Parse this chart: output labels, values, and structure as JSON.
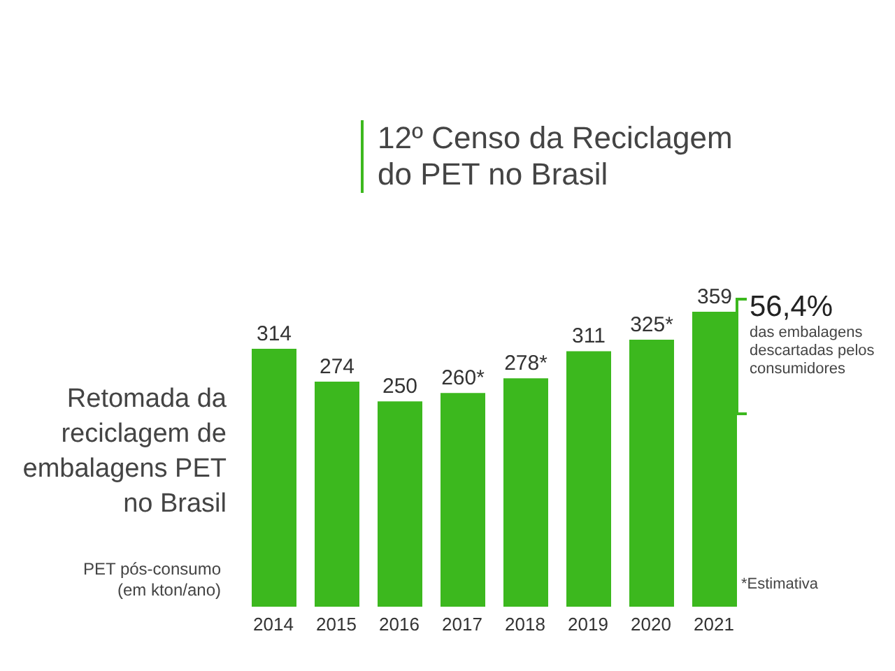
{
  "chart_data": {
    "type": "bar",
    "title": "12º Censo da Reciclagem do PET no Brasil",
    "subtitle": "Retomada da reciclagem de embalagens PET no Brasil",
    "ylabel": "PET pós-consumo (em kton/ano)",
    "categories": [
      "2014",
      "2015",
      "2016",
      "2017",
      "2018",
      "2019",
      "2020",
      "2021"
    ],
    "values": [
      314,
      274,
      250,
      260,
      278,
      311,
      325,
      359
    ],
    "value_labels": [
      "314",
      "274",
      "250",
      "260*",
      "278*",
      "311",
      "325*",
      "359"
    ],
    "color": "#3cb81e",
    "annotations": [
      "56,4%",
      "das embalagens descartadas pelos consumidores",
      "*Estimativa"
    ]
  }
}
